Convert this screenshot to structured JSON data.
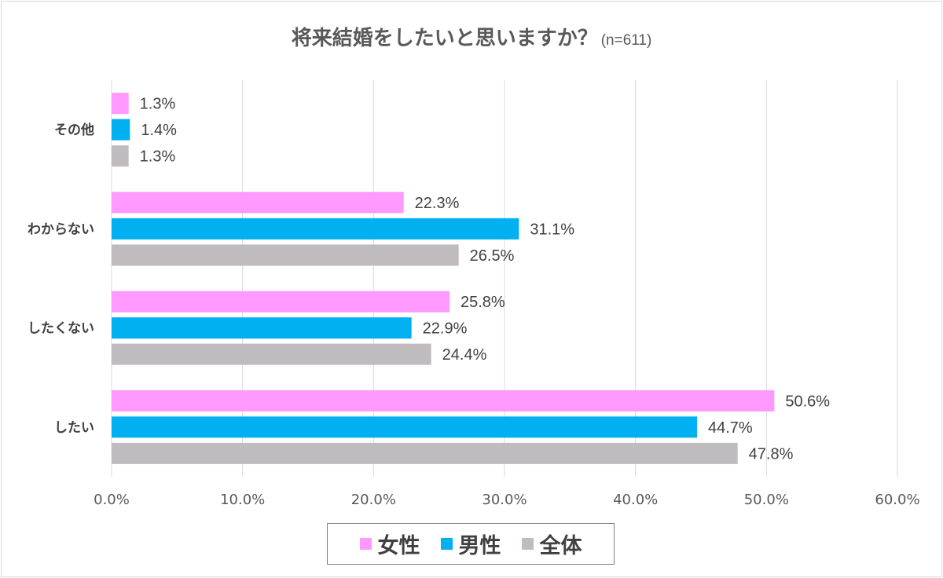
{
  "title": "将来結婚をしたいと思いますか？",
  "subtitle": "(n=611)",
  "chart_data": {
    "type": "bar",
    "orientation": "horizontal",
    "categories": [
      "その他",
      "わからない",
      "したくない",
      "したい"
    ],
    "series": [
      {
        "name": "女性",
        "color": "#ff99ff",
        "values": [
          1.3,
          22.3,
          25.8,
          50.6
        ],
        "labels": [
          "1.3%",
          "22.3%",
          "25.8%",
          "50.6%"
        ]
      },
      {
        "name": "男性",
        "color": "#00b0f0",
        "values": [
          1.4,
          31.1,
          22.9,
          44.7
        ],
        "labels": [
          "1.4%",
          "31.1%",
          "22.9%",
          "44.7%"
        ]
      },
      {
        "name": "全体",
        "color": "#c0bbbf",
        "values": [
          1.3,
          26.5,
          24.4,
          47.8
        ],
        "labels": [
          "1.3%",
          "26.5%",
          "24.4%",
          "47.8%"
        ]
      }
    ],
    "xlim": [
      0,
      60
    ],
    "ticks": [
      0,
      10,
      20,
      30,
      40,
      50,
      60
    ],
    "tick_labels": [
      "0.0%",
      "10.0%",
      "20.0%",
      "30.0%",
      "40.0%",
      "50.0%",
      "60.0%"
    ],
    "grid": true,
    "legend_position": "bottom"
  }
}
